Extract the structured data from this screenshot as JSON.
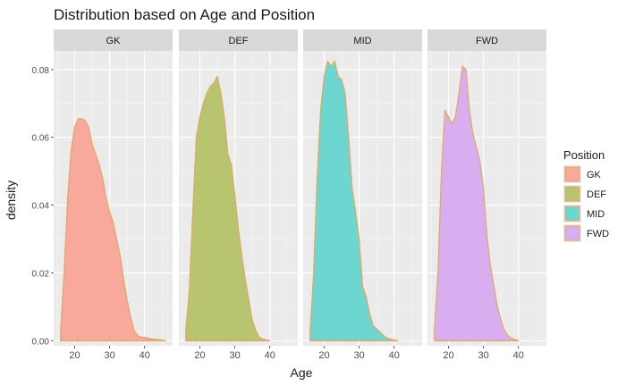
{
  "chart_data": {
    "type": "area",
    "title": "Distribution based on Age and Position",
    "xlabel": "Age",
    "ylabel": "density",
    "xlim": [
      14,
      48
    ],
    "ylim": [
      -0.0015,
      0.0855
    ],
    "x_ticks": [
      20,
      30,
      40
    ],
    "y_ticks": [
      0,
      0.02,
      0.04,
      0.06,
      0.08
    ],
    "y_tick_labels": [
      "0.00",
      "0.02",
      "0.04",
      "0.06",
      "0.08"
    ],
    "grid": true,
    "legend": {
      "title": "Position",
      "placement": "right"
    },
    "panels": [
      {
        "name": "GK",
        "fill": "#F8A99B",
        "x": [
          16,
          17,
          18,
          19,
          20,
          21,
          22,
          23,
          24,
          25,
          26,
          27,
          28,
          29,
          30,
          31,
          32,
          33,
          34,
          35,
          36,
          37,
          38,
          39,
          40,
          42,
          44,
          46
        ],
        "y": [
          0.003,
          0.02,
          0.042,
          0.056,
          0.063,
          0.0655,
          0.0655,
          0.065,
          0.063,
          0.058,
          0.055,
          0.052,
          0.048,
          0.042,
          0.038,
          0.035,
          0.03,
          0.025,
          0.018,
          0.012,
          0.007,
          0.003,
          0.0015,
          0.001,
          0.001,
          0.0005,
          0.0003,
          0
        ]
      },
      {
        "name": "DEF",
        "fill": "#B9C46E",
        "x": [
          16,
          17,
          18,
          19,
          20,
          21,
          22,
          23,
          24,
          25,
          26,
          27,
          28,
          29,
          30,
          31,
          32,
          33,
          34,
          35,
          36,
          37,
          38,
          39,
          40
        ],
        "y": [
          0.003,
          0.015,
          0.038,
          0.06,
          0.066,
          0.07,
          0.073,
          0.075,
          0.076,
          0.078,
          0.073,
          0.066,
          0.055,
          0.052,
          0.043,
          0.033,
          0.025,
          0.018,
          0.012,
          0.006,
          0.003,
          0.001,
          0.0005,
          0.0002,
          0
        ]
      },
      {
        "name": "MID",
        "fill": "#6DD6D1",
        "x": [
          16,
          17,
          18,
          19,
          20,
          21,
          22,
          23,
          24,
          25,
          26,
          27,
          28,
          29,
          30,
          31,
          32,
          33,
          34,
          35,
          36,
          37,
          38,
          39,
          40,
          41
        ],
        "y": [
          0.003,
          0.02,
          0.048,
          0.068,
          0.078,
          0.0825,
          0.081,
          0.0825,
          0.078,
          0.077,
          0.073,
          0.06,
          0.045,
          0.038,
          0.03,
          0.016,
          0.013,
          0.008,
          0.0045,
          0.0035,
          0.0025,
          0.0015,
          0.0008,
          0.0004,
          0.0002,
          0
        ]
      },
      {
        "name": "FWD",
        "fill": "#D9AEF0",
        "x": [
          16,
          17,
          18,
          19,
          20,
          21,
          22,
          23,
          24,
          25,
          26,
          27,
          28,
          29,
          30,
          31,
          32,
          33,
          34,
          35,
          36,
          37,
          38,
          39,
          40
        ],
        "y": [
          0.003,
          0.02,
          0.05,
          0.068,
          0.066,
          0.064,
          0.066,
          0.073,
          0.081,
          0.08,
          0.068,
          0.061,
          0.057,
          0.053,
          0.045,
          0.031,
          0.022,
          0.016,
          0.01,
          0.006,
          0.003,
          0.0015,
          0.0008,
          0.0003,
          0
        ]
      }
    ]
  }
}
